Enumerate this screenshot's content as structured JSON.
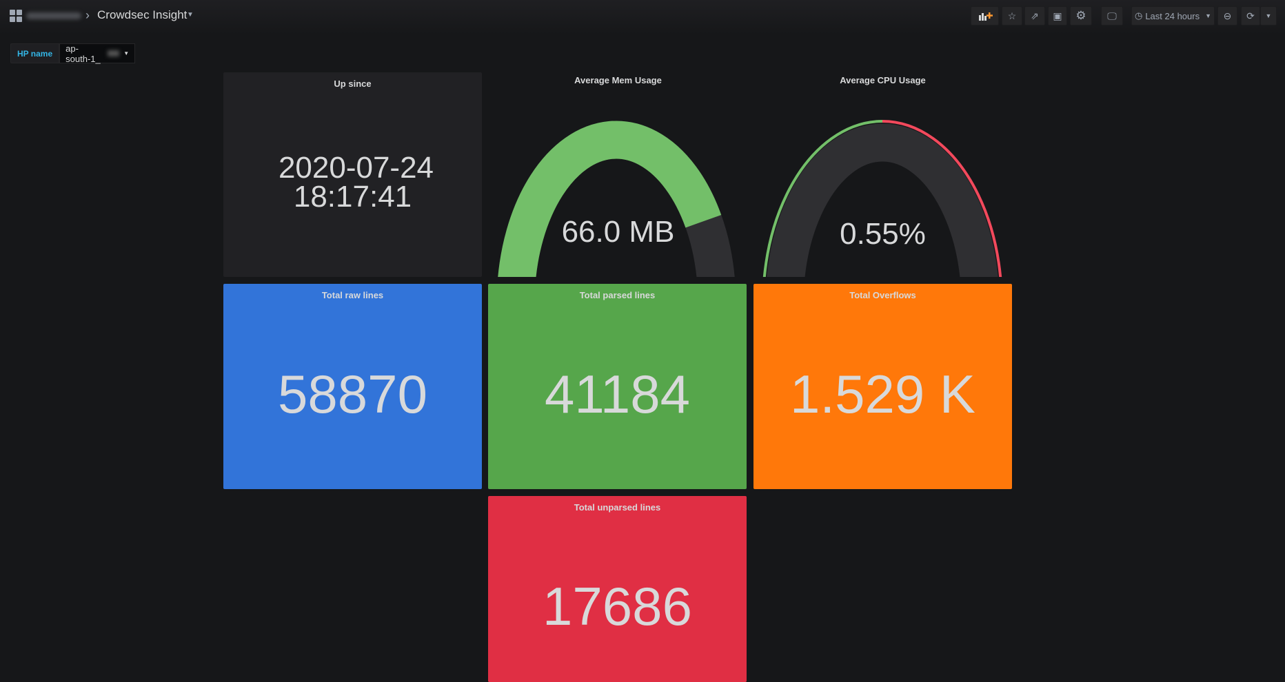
{
  "header": {
    "breadcrumb_title": "Crowdsec Insight",
    "toolbar": {
      "add_panel": "add-panel-icon",
      "star": "star-icon",
      "share": "share-icon",
      "save": "save-icon",
      "settings": "gear-icon",
      "tv_mode": "monitor-icon",
      "time_range": "Last 24 hours",
      "zoom_out": "zoom-out-icon",
      "refresh": "refresh-icon"
    }
  },
  "variables": {
    "label": "HP name",
    "value": "ap-south-1_"
  },
  "panels": {
    "up_since": {
      "title": "Up since",
      "date": "2020-07-24",
      "time": "18:17:41"
    },
    "mem": {
      "title": "Average Mem Usage",
      "value": "66.0 MB",
      "fill_fraction": 0.78,
      "color": "#73bf69"
    },
    "cpu": {
      "title": "Average CPU Usage",
      "value": "0.55%",
      "fill_fraction": 0.0055,
      "threshold_fraction": 0.5,
      "color": "#73bf69",
      "threshold_colors": [
        "#73bf69",
        "#f2495c"
      ]
    },
    "raw": {
      "title": "Total raw lines",
      "value": "58870",
      "color": "#3274d9"
    },
    "parsed": {
      "title": "Total parsed lines",
      "value": "41184",
      "color": "#56a64b"
    },
    "overflows": {
      "title": "Total Overflows",
      "value": "1.529 K",
      "color": "#ff780a"
    },
    "unparsed": {
      "title": "Total unparsed lines",
      "value": "17686",
      "color": "#e02f44"
    }
  }
}
